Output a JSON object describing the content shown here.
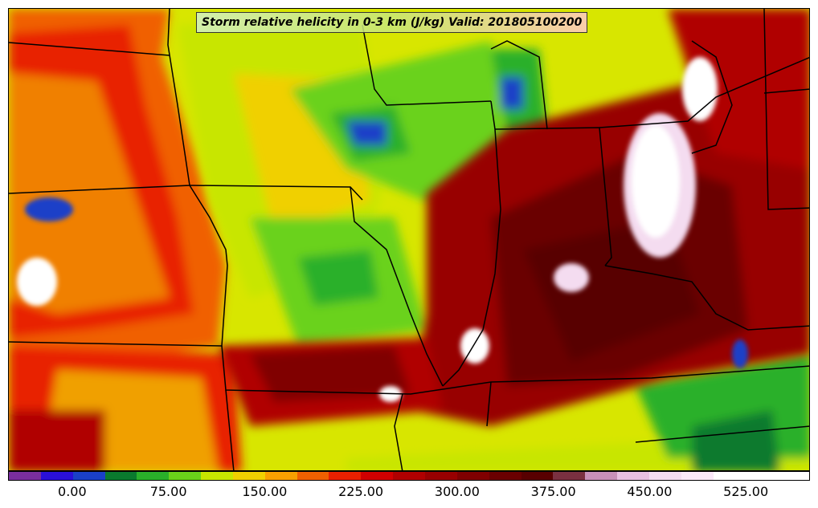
{
  "title": "Storm relative helicity in 0-3 km (J/kg) Valid: 201805100200",
  "colorbar": {
    "ticks": [
      "0.00",
      "75.00",
      "150.00",
      "225.00",
      "300.00",
      "375.00",
      "450.00",
      "525.00"
    ],
    "tick_values": [
      0,
      75,
      150,
      225,
      300,
      375,
      450,
      525
    ],
    "min": -50,
    "max": 575,
    "step": 25,
    "colors": [
      "#7a2e9e",
      "#2a10d8",
      "#1a40c8",
      "#0a7a2e",
      "#2ab02a",
      "#6ad21a",
      "#c8e600",
      "#f0d000",
      "#f8a000",
      "#f06000",
      "#e82000",
      "#d00000",
      "#b00000",
      "#980000",
      "#800000",
      "#6a0000",
      "#580000",
      "#7a3040",
      "#c890b8",
      "#e8c0e0",
      "#f4dcf0",
      "#fae8f8",
      "#ffffff",
      "#ffffff",
      "#ffffff"
    ]
  },
  "map": {
    "variable": "Storm relative helicity 0-3 km",
    "units": "J/kg",
    "valid_time": "201805100200"
  }
}
